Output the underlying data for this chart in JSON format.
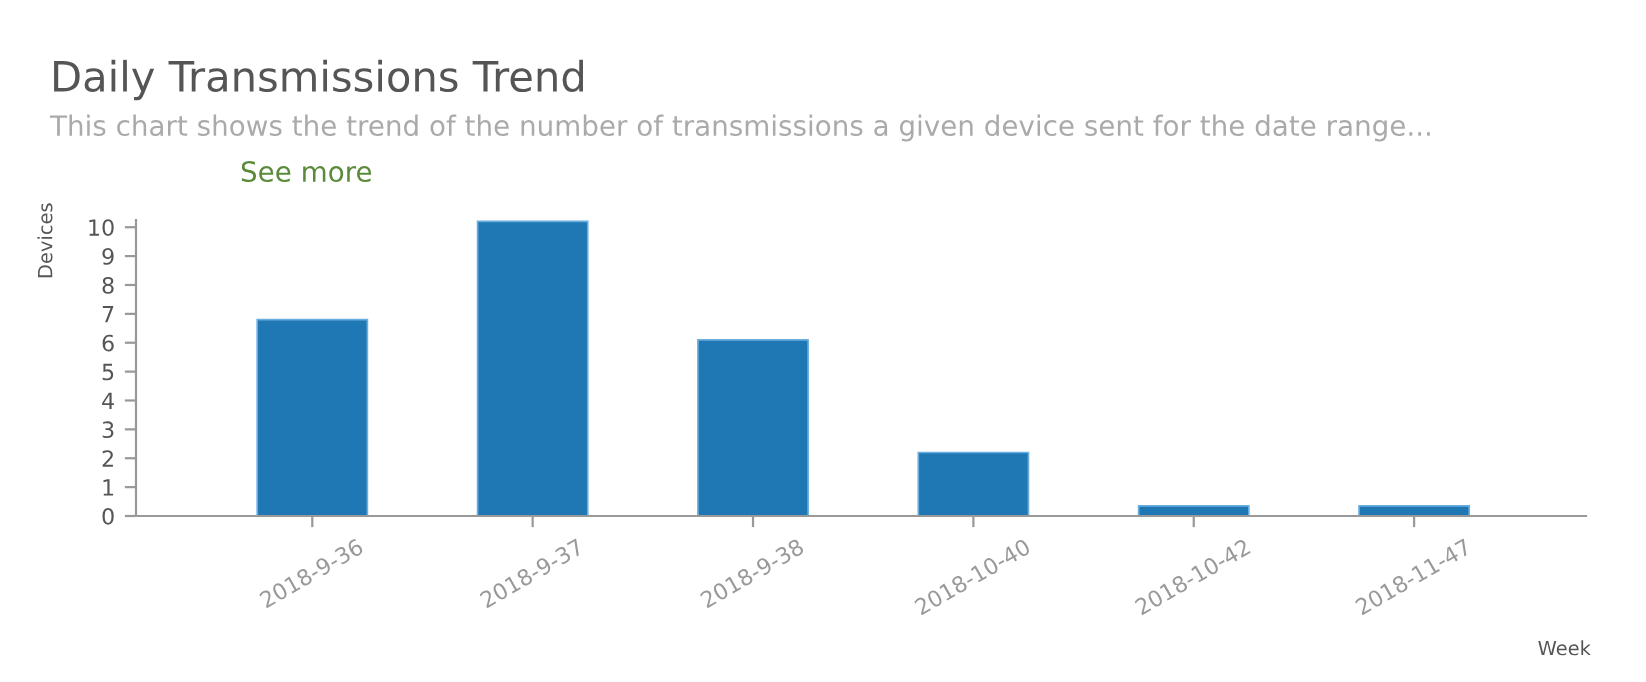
{
  "chart_data": {
    "type": "bar",
    "title": "Daily Transmissions Trend",
    "subtitle": "This chart shows the trend of the number of transmissions a given device sent for the date range...",
    "annotations": [
      "See more"
    ],
    "xlabel": "Week",
    "ylabel": "Devices",
    "categories": [
      "2018-9-36",
      "2018-9-37",
      "2018-9-38",
      "2018-10-40",
      "2018-10-42",
      "2018-11-47"
    ],
    "values": [
      6.8,
      10.2,
      6.1,
      2.2,
      0.35,
      0.35
    ],
    "color": "#1f77b4",
    "ylim": [
      0,
      10.25
    ],
    "yticks": [
      0,
      1,
      2,
      3,
      4,
      5,
      6,
      7,
      8,
      9,
      10
    ],
    "grid": false,
    "legend": false
  }
}
